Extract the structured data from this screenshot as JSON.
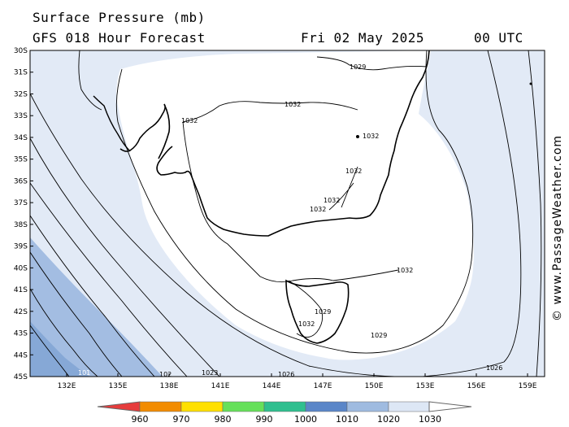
{
  "header": {
    "title_line1": "Surface Pressure (mb)",
    "title_line2": "GFS 018 Hour Forecast",
    "date": "Fri 02 May 2025",
    "time": "00 UTC"
  },
  "copyright": "© www.PassageWeather.com",
  "lat_labels": [
    "30S",
    "31S",
    "32S",
    "33S",
    "34S",
    "35S",
    "36S",
    "37S",
    "38S",
    "39S",
    "40S",
    "41S",
    "42S",
    "43S",
    "44S",
    "45S"
  ],
  "lon_labels": [
    "132E",
    "135E",
    "138E",
    "141E",
    "144E",
    "147E",
    "150E",
    "153E",
    "156E",
    "159E"
  ],
  "isobar_labels": {
    "a": "1029",
    "b": "1032",
    "c": "1032",
    "d": "1032",
    "e": "1032",
    "f": "1032",
    "g": "1032",
    "h": "1032",
    "i": "1029",
    "j": "1032",
    "k": "1029",
    "l": "1026",
    "m": "1026",
    "n": "1023",
    "o": "102",
    "p": "101"
  },
  "colorbar": {
    "ticks": [
      "960",
      "970",
      "980",
      "990",
      "1000",
      "1010",
      "1020",
      "1030"
    ],
    "colors": [
      "#e63c3c",
      "#f28c00",
      "#ffe000",
      "#66e05a",
      "#2fbf8f",
      "#5a86c8",
      "#9fbbe0",
      "#dde7f5",
      "#ffffff"
    ]
  }
}
